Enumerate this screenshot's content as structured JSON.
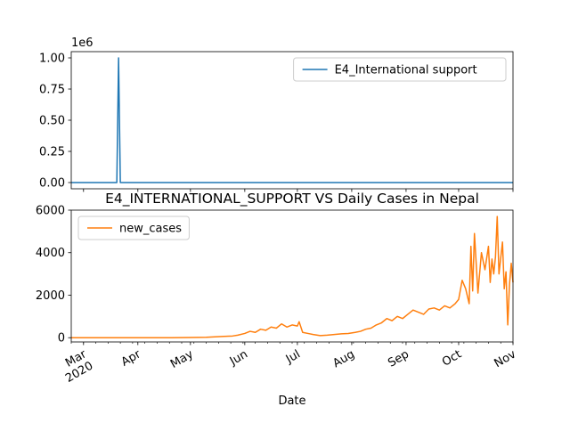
{
  "chart_data": [
    {
      "type": "line",
      "title": "",
      "xlabel": "",
      "ylabel": "",
      "y_offset_label": "1e6",
      "ylim": [
        -0.05,
        1.05
      ],
      "yticks": [
        0.0,
        0.25,
        0.5,
        0.75,
        1.0
      ],
      "ytick_labels": [
        "0.00",
        "0.25",
        "0.50",
        "0.75",
        "1.00"
      ],
      "xlim": [
        "2020-02-23",
        "2020-11-01"
      ],
      "legend_position": "upper right",
      "series": [
        {
          "name": "E4_International support",
          "color": "#1f77b4",
          "x": [
            "2020-02-23",
            "2020-03-20",
            "2020-03-21",
            "2020-03-22",
            "2020-11-01"
          ],
          "y": [
            0,
            0,
            1.0,
            0,
            0
          ]
        }
      ]
    },
    {
      "type": "line",
      "title": "E4_INTERNATIONAL_SUPPORT VS Daily Cases in Nepal",
      "xlabel": "Date",
      "ylabel": "",
      "ylim": [
        -200,
        6000
      ],
      "yticks": [
        0,
        2000,
        4000,
        6000
      ],
      "ytick_labels": [
        "0",
        "2000",
        "4000",
        "6000"
      ],
      "xlim": [
        "2020-02-23",
        "2020-11-01"
      ],
      "xticks": [
        "2020-03-01",
        "2020-04-01",
        "2020-05-01",
        "2020-06-01",
        "2020-07-01",
        "2020-08-01",
        "2020-09-01",
        "2020-10-01",
        "2020-11-01"
      ],
      "xtick_labels": [
        "Mar\n2020",
        "Apr",
        "May",
        "Jun",
        "Jul",
        "Aug",
        "Sep",
        "Oct",
        "Nov"
      ],
      "legend_position": "upper left",
      "series": [
        {
          "name": "new_cases",
          "color": "#ff7f0e",
          "x": [
            "2020-02-23",
            "2020-04-20",
            "2020-05-01",
            "2020-05-10",
            "2020-05-15",
            "2020-05-20",
            "2020-05-25",
            "2020-05-28",
            "2020-06-01",
            "2020-06-04",
            "2020-06-07",
            "2020-06-10",
            "2020-06-13",
            "2020-06-16",
            "2020-06-19",
            "2020-06-22",
            "2020-06-25",
            "2020-06-28",
            "2020-07-01",
            "2020-07-02",
            "2020-07-04",
            "2020-07-07",
            "2020-07-10",
            "2020-07-14",
            "2020-07-18",
            "2020-07-22",
            "2020-07-26",
            "2020-07-30",
            "2020-08-03",
            "2020-08-06",
            "2020-08-09",
            "2020-08-12",
            "2020-08-15",
            "2020-08-18",
            "2020-08-21",
            "2020-08-24",
            "2020-08-27",
            "2020-08-30",
            "2020-09-02",
            "2020-09-05",
            "2020-09-08",
            "2020-09-11",
            "2020-09-14",
            "2020-09-17",
            "2020-09-20",
            "2020-09-23",
            "2020-09-26",
            "2020-09-29",
            "2020-10-01",
            "2020-10-03",
            "2020-10-05",
            "2020-10-07",
            "2020-10-08",
            "2020-10-09",
            "2020-10-10",
            "2020-10-12",
            "2020-10-14",
            "2020-10-16",
            "2020-10-18",
            "2020-10-19",
            "2020-10-20",
            "2020-10-21",
            "2020-10-22",
            "2020-10-23",
            "2020-10-24",
            "2020-10-26",
            "2020-10-27",
            "2020-10-28",
            "2020-10-29",
            "2020-10-30",
            "2020-10-31",
            "2020-11-01"
          ],
          "y": [
            0,
            0,
            10,
            20,
            40,
            60,
            80,
            120,
            200,
            300,
            250,
            400,
            350,
            500,
            450,
            650,
            500,
            600,
            550,
            750,
            250,
            200,
            150,
            100,
            120,
            150,
            180,
            200,
            250,
            300,
            400,
            450,
            600,
            700,
            900,
            800,
            1000,
            900,
            1100,
            1300,
            1200,
            1100,
            1350,
            1400,
            1300,
            1500,
            1400,
            1600,
            1800,
            2700,
            2300,
            1600,
            4300,
            2200,
            4900,
            2100,
            4000,
            3200,
            4300,
            2600,
            3700,
            3000,
            3800,
            5700,
            3000,
            4500,
            2300,
            3100,
            600,
            2500,
            3500,
            2600
          ]
        }
      ]
    }
  ]
}
